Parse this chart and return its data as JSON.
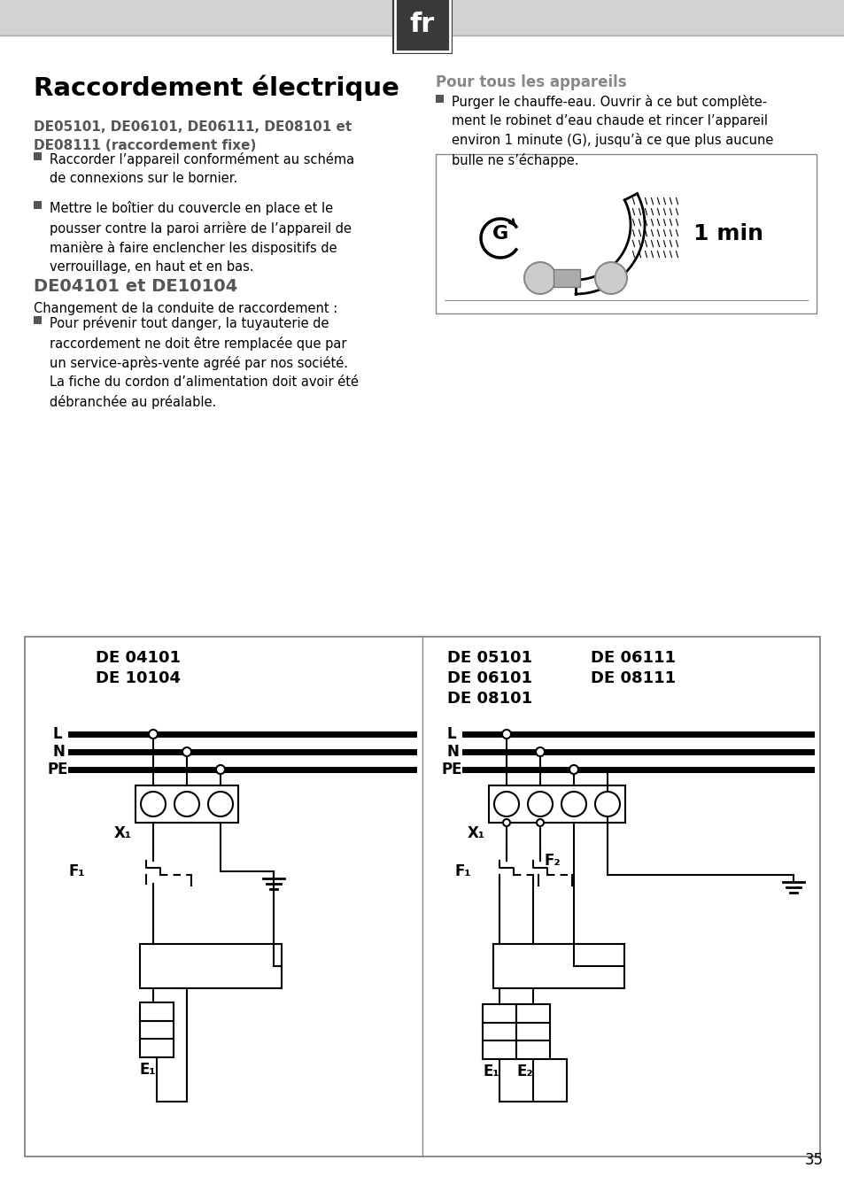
{
  "title": "fr",
  "page_num": "35",
  "bg_color": "#e8e8e8",
  "content_bg": "#ffffff",
  "header_gray": "#d0d0d0",
  "section_title": "Raccordement électrique",
  "subtitle1": "DE05101, DE06101, DE06111, DE08101 et\nDE08111 (raccordement fixe)",
  "bullet1a": "Raccorder l’appareil conformément au schéma\nde connexions sur le bornier.",
  "bullet1b": "Mettre le boîtier du couvercle en place et le\npousser contre la paroi arrière de l’appareil de\nmanière à faire enclencher les dispositifs de\nverrouillage, en haut et en bas.",
  "subtitle2": "DE04101 et DE10104",
  "subtitle3": "Changement de la conduite de raccordement :",
  "bullet2a": "Pour prévenir tout danger, la tuyauterie de\nraccordement ne doit être remplacée que par\nun service-après-vente agréé par nos société.\nLa fiche du cordon d’alimentation doit avoir été\ndébranchée au préalable.",
  "right_title": "Pour tous les appareils",
  "right_bullet": "Purger le chauffe-eau. Ouvrir à ce but complète-\nment le robinet d’eau chaude et rincer l’appareil\nenviron 1 minute (G), jusqu’à ce que plus aucune\nbulle ne s’échappe.",
  "diag_left_title1": "DE 04101",
  "diag_left_title2": "DE 10104",
  "diag_right_title1": "DE 05101",
  "diag_right_title2": "DE 06101",
  "diag_right_title3": "DE 08101",
  "diag_right_title4": "DE 06111",
  "diag_right_title5": "DE 08111",
  "one_min": "1 min"
}
